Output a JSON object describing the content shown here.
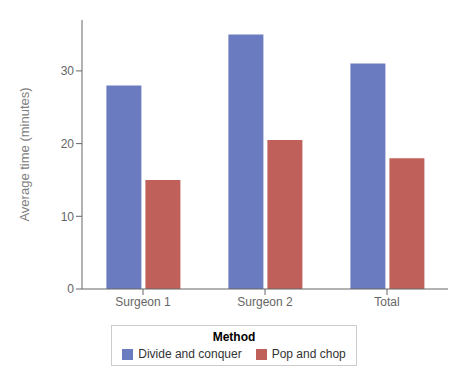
{
  "chart_data": {
    "type": "bar",
    "categories": [
      "Surgeon 1",
      "Surgeon 2",
      "Total"
    ],
    "series": [
      {
        "name": "Divide and conquer",
        "color": "#6b7bbf",
        "values": [
          28,
          35,
          31
        ]
      },
      {
        "name": "Pop and chop",
        "color": "#c0605a",
        "values": [
          15,
          20.5,
          18
        ]
      }
    ],
    "ylabel": "Average time (minutes)",
    "ylim": [
      0,
      37
    ],
    "yticks": [
      0,
      10,
      20,
      30
    ],
    "grid": false,
    "legend": "bottom",
    "legend_title": "Method"
  }
}
